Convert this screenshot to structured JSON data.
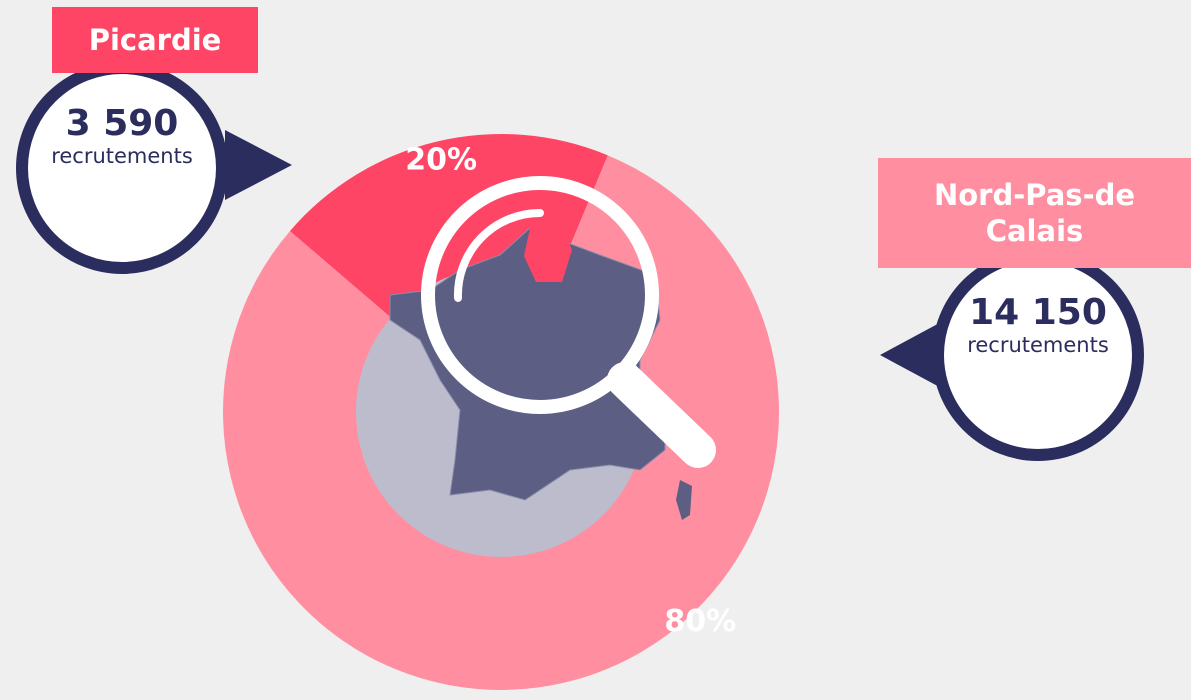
{
  "chart_data": {
    "type": "pie",
    "categories": [
      "Picardie",
      "Nord-Pas-de Calais"
    ],
    "values": [
      20,
      80
    ],
    "value_labels": [
      "20%",
      "80%"
    ],
    "colors": [
      "#ff4565",
      "#ff8fa0"
    ],
    "counts": [
      3590,
      14150
    ],
    "count_labels": [
      "3 590",
      "14 150"
    ],
    "count_unit": "recrutements"
  }
}
